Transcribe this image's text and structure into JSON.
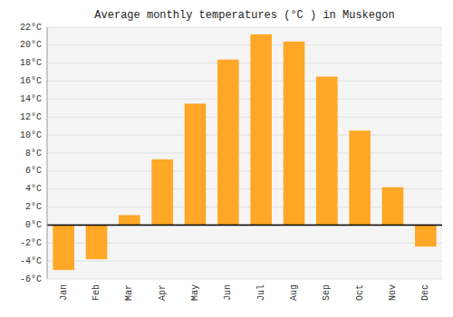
{
  "chart_data": {
    "type": "bar",
    "title": "Average monthly temperatures (°C ) in Muskegon",
    "categories": [
      "Jan",
      "Feb",
      "Mar",
      "Apr",
      "May",
      "Jun",
      "Jul",
      "Aug",
      "Sep",
      "Oct",
      "Nov",
      "Dec"
    ],
    "values": [
      -5.0,
      -3.8,
      1.1,
      7.3,
      13.5,
      18.4,
      21.2,
      20.4,
      16.5,
      10.5,
      4.2,
      -2.4
    ],
    "color": "#FFA726",
    "ylim": [
      -6,
      22
    ],
    "yticks": [
      {
        "value": -6,
        "label": "-6°C"
      },
      {
        "value": -4,
        "label": "-4°C"
      },
      {
        "value": -2,
        "label": "-2°C"
      },
      {
        "value": 0,
        "label": "0°C"
      },
      {
        "value": 2,
        "label": "2°C"
      },
      {
        "value": 4,
        "label": "4°C"
      },
      {
        "value": 6,
        "label": "6°C"
      },
      {
        "value": 8,
        "label": "8°C"
      },
      {
        "value": 10,
        "label": "10°C"
      },
      {
        "value": 12,
        "label": "12°C"
      },
      {
        "value": 14,
        "label": "14°C"
      },
      {
        "value": 16,
        "label": "16°C"
      },
      {
        "value": 18,
        "label": "18°C"
      },
      {
        "value": 20,
        "label": "20°C"
      },
      {
        "value": 22,
        "label": "22°C"
      }
    ],
    "grid": true
  }
}
